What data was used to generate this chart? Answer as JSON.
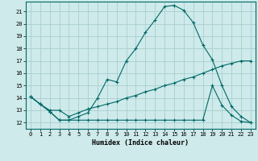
{
  "title": "",
  "xlabel": "Humidex (Indice chaleur)",
  "ylabel": "",
  "background_color": "#ceeaea",
  "grid_color": "#aacece",
  "line_color": "#006868",
  "xlim": [
    -0.5,
    23.5
  ],
  "ylim": [
    11.5,
    21.8
  ],
  "yticks": [
    12,
    13,
    14,
    15,
    16,
    17,
    18,
    19,
    20,
    21
  ],
  "xticks": [
    0,
    1,
    2,
    3,
    4,
    5,
    6,
    7,
    8,
    9,
    10,
    11,
    12,
    13,
    14,
    15,
    16,
    17,
    18,
    19,
    20,
    21,
    22,
    23
  ],
  "line1_x": [
    0,
    1,
    2,
    3,
    4,
    5,
    6,
    7,
    8,
    9,
    10,
    11,
    12,
    13,
    14,
    15,
    16,
    17,
    18,
    19,
    20,
    21,
    22,
    23
  ],
  "line1_y": [
    14.1,
    13.5,
    12.9,
    12.2,
    12.2,
    12.5,
    12.8,
    14.0,
    15.5,
    15.3,
    17.0,
    18.0,
    19.3,
    20.3,
    21.4,
    21.5,
    21.1,
    20.1,
    18.3,
    17.1,
    15.0,
    13.3,
    12.5,
    12.0
  ],
  "line2_x": [
    0,
    1,
    2,
    3,
    4,
    5,
    6,
    7,
    8,
    9,
    10,
    11,
    12,
    13,
    14,
    15,
    16,
    17,
    18,
    19,
    20,
    21,
    22,
    23
  ],
  "line2_y": [
    14.1,
    13.5,
    13.0,
    13.0,
    12.5,
    12.8,
    13.1,
    13.3,
    13.5,
    13.7,
    14.0,
    14.2,
    14.5,
    14.7,
    15.0,
    15.2,
    15.5,
    15.7,
    16.0,
    16.3,
    16.6,
    16.8,
    17.0,
    17.0
  ],
  "line3_x": [
    0,
    1,
    2,
    3,
    4,
    5,
    6,
    7,
    8,
    9,
    10,
    11,
    12,
    13,
    14,
    15,
    16,
    17,
    18,
    19,
    20,
    21,
    22,
    23
  ],
  "line3_y": [
    14.1,
    13.5,
    12.9,
    12.2,
    12.2,
    12.2,
    12.2,
    12.2,
    12.2,
    12.2,
    12.2,
    12.2,
    12.2,
    12.2,
    12.2,
    12.2,
    12.2,
    12.2,
    12.2,
    15.0,
    13.4,
    12.6,
    12.1,
    12.0
  ]
}
